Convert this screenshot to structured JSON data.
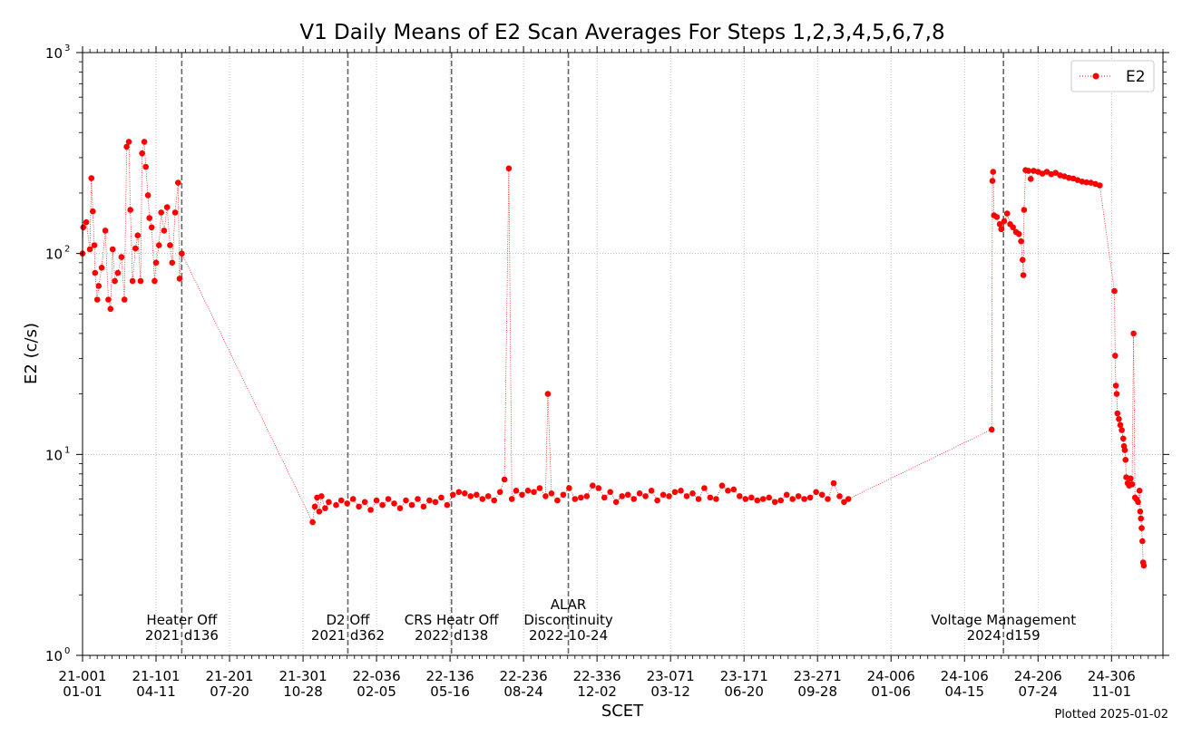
{
  "chart_data": {
    "type": "scatter",
    "title": "V1 Daily Means of E2 Scan Averages For Steps 1,2,3,4,5,6,7,8",
    "xlabel": "SCET",
    "ylabel": "E2 (c/s)",
    "x_units": "days since 2021-001",
    "xlim": [
      0,
      1470
    ],
    "ylim": [
      1,
      1000
    ],
    "yscale": "log",
    "grid": true,
    "legend": {
      "position": "top-right",
      "entries": [
        "E2"
      ]
    },
    "yticks": [
      {
        "value": 1,
        "base": "10",
        "exp": "0"
      },
      {
        "value": 10,
        "base": "10",
        "exp": "1"
      },
      {
        "value": 100,
        "base": "10",
        "exp": "2"
      },
      {
        "value": 1000,
        "base": "10",
        "exp": "3"
      }
    ],
    "xticks": [
      {
        "value": 0,
        "doy": "21-001",
        "date": "01-01"
      },
      {
        "value": 100,
        "doy": "21-101",
        "date": "04-11"
      },
      {
        "value": 200,
        "doy": "21-201",
        "date": "07-20"
      },
      {
        "value": 300,
        "doy": "21-301",
        "date": "10-28"
      },
      {
        "value": 400,
        "doy": "22-036",
        "date": "02-05"
      },
      {
        "value": 500,
        "doy": "22-136",
        "date": "05-16"
      },
      {
        "value": 600,
        "doy": "22-236",
        "date": "08-24"
      },
      {
        "value": 700,
        "doy": "22-336",
        "date": "12-02"
      },
      {
        "value": 800,
        "doy": "23-071",
        "date": "03-12"
      },
      {
        "value": 900,
        "doy": "23-171",
        "date": "06-20"
      },
      {
        "value": 1000,
        "doy": "23-271",
        "date": "09-28"
      },
      {
        "value": 1100,
        "doy": "24-006",
        "date": "01-06"
      },
      {
        "value": 1200,
        "doy": "24-106",
        "date": "04-15"
      },
      {
        "value": 1300,
        "doy": "24-206",
        "date": "07-24"
      },
      {
        "value": 1400,
        "doy": "24-306",
        "date": "11-01"
      }
    ],
    "events": [
      {
        "x": 135,
        "lines": [
          "Heater Off",
          "2021 d136"
        ]
      },
      {
        "x": 361,
        "lines": [
          "D2 Off",
          "2021 d362"
        ]
      },
      {
        "x": 502,
        "lines": [
          "CRS Heatr Off",
          "2022 d138"
        ]
      },
      {
        "x": 661,
        "lines": [
          "ALAR",
          "Discontinuity",
          "2022-10-24"
        ]
      },
      {
        "x": 1253,
        "lines": [
          "Voltage Management",
          "2024 d159"
        ]
      }
    ],
    "series": [
      {
        "name": "E2",
        "color": "#ff0000",
        "points": [
          [
            0,
            100
          ],
          [
            1,
            135
          ],
          [
            5,
            143
          ],
          [
            10,
            105
          ],
          [
            12,
            237
          ],
          [
            14,
            162
          ],
          [
            16,
            110
          ],
          [
            17,
            80
          ],
          [
            20,
            59
          ],
          [
            22,
            69
          ],
          [
            26,
            85
          ],
          [
            31,
            130
          ],
          [
            35,
            59
          ],
          [
            38,
            53
          ],
          [
            41,
            105
          ],
          [
            44,
            73
          ],
          [
            48,
            80
          ],
          [
            53,
            96
          ],
          [
            57,
            59
          ],
          [
            60,
            340
          ],
          [
            63,
            360
          ],
          [
            65,
            165
          ],
          [
            68,
            73
          ],
          [
            72,
            106
          ],
          [
            75,
            123
          ],
          [
            79,
            73
          ],
          [
            81,
            315
          ],
          [
            84,
            360
          ],
          [
            86,
            270
          ],
          [
            89,
            195
          ],
          [
            91,
            150
          ],
          [
            94,
            135
          ],
          [
            98,
            73
          ],
          [
            100,
            90
          ],
          [
            104,
            110
          ],
          [
            107,
            160
          ],
          [
            111,
            130
          ],
          [
            115,
            170
          ],
          [
            119,
            110
          ],
          [
            122,
            90
          ],
          [
            126,
            160
          ],
          [
            130,
            225
          ],
          [
            132,
            75
          ],
          [
            135,
            100
          ],
          [
            313,
            4.6
          ],
          [
            316,
            5.5
          ],
          [
            319,
            6.1
          ],
          [
            322,
            5.2
          ],
          [
            325,
            6.2
          ],
          [
            330,
            5.4
          ],
          [
            335,
            5.8
          ],
          [
            345,
            5.6
          ],
          [
            352,
            5.9
          ],
          [
            360,
            5.7
          ],
          [
            368,
            6.0
          ],
          [
            376,
            5.5
          ],
          [
            384,
            5.8
          ],
          [
            392,
            5.3
          ],
          [
            400,
            5.9
          ],
          [
            408,
            5.6
          ],
          [
            416,
            6.0
          ],
          [
            424,
            5.7
          ],
          [
            432,
            5.4
          ],
          [
            440,
            5.9
          ],
          [
            448,
            5.6
          ],
          [
            456,
            6.0
          ],
          [
            464,
            5.5
          ],
          [
            472,
            5.9
          ],
          [
            480,
            5.8
          ],
          [
            488,
            6.1
          ],
          [
            496,
            5.6
          ],
          [
            504,
            6.3
          ],
          [
            512,
            6.5
          ],
          [
            520,
            6.4
          ],
          [
            528,
            6.2
          ],
          [
            536,
            6.3
          ],
          [
            544,
            6.0
          ],
          [
            552,
            6.2
          ],
          [
            560,
            5.9
          ],
          [
            568,
            6.5
          ],
          [
            574,
            7.5
          ],
          [
            580,
            265
          ],
          [
            584,
            6.0
          ],
          [
            590,
            6.6
          ],
          [
            598,
            6.3
          ],
          [
            606,
            6.6
          ],
          [
            614,
            6.5
          ],
          [
            622,
            6.8
          ],
          [
            630,
            6.2
          ],
          [
            633,
            20
          ],
          [
            638,
            6.4
          ],
          [
            646,
            5.9
          ],
          [
            654,
            6.3
          ],
          [
            662,
            6.8
          ],
          [
            670,
            6.0
          ],
          [
            678,
            6.1
          ],
          [
            686,
            6.2
          ],
          [
            694,
            7.0
          ],
          [
            702,
            6.8
          ],
          [
            710,
            6.1
          ],
          [
            718,
            6.5
          ],
          [
            726,
            5.8
          ],
          [
            734,
            6.2
          ],
          [
            742,
            6.3
          ],
          [
            750,
            6.0
          ],
          [
            758,
            6.4
          ],
          [
            766,
            6.2
          ],
          [
            774,
            6.6
          ],
          [
            782,
            5.9
          ],
          [
            790,
            6.3
          ],
          [
            798,
            6.2
          ],
          [
            806,
            6.5
          ],
          [
            814,
            6.6
          ],
          [
            822,
            6.2
          ],
          [
            830,
            6.4
          ],
          [
            838,
            6.0
          ],
          [
            846,
            6.8
          ],
          [
            854,
            6.1
          ],
          [
            862,
            6.0
          ],
          [
            870,
            7.0
          ],
          [
            878,
            6.6
          ],
          [
            886,
            6.7
          ],
          [
            894,
            6.2
          ],
          [
            902,
            6.0
          ],
          [
            910,
            6.1
          ],
          [
            918,
            5.9
          ],
          [
            926,
            6.0
          ],
          [
            934,
            6.1
          ],
          [
            942,
            5.8
          ],
          [
            950,
            5.9
          ],
          [
            958,
            6.3
          ],
          [
            966,
            6.0
          ],
          [
            974,
            6.2
          ],
          [
            982,
            6.0
          ],
          [
            990,
            6.1
          ],
          [
            998,
            6.5
          ],
          [
            1006,
            6.3
          ],
          [
            1014,
            6.0
          ],
          [
            1022,
            7.2
          ],
          [
            1030,
            6.2
          ],
          [
            1036,
            5.8
          ],
          [
            1042,
            6.0
          ],
          [
            1237,
            13.3
          ],
          [
            1238,
            230
          ],
          [
            1239,
            255
          ],
          [
            1240,
            155
          ],
          [
            1244,
            152
          ],
          [
            1248,
            140
          ],
          [
            1250,
            132
          ],
          [
            1254,
            145
          ],
          [
            1258,
            158
          ],
          [
            1262,
            140
          ],
          [
            1266,
            135
          ],
          [
            1270,
            128
          ],
          [
            1274,
            125
          ],
          [
            1277,
            115
          ],
          [
            1279,
            93
          ],
          [
            1280,
            78
          ],
          [
            1281,
            165
          ],
          [
            1283,
            260
          ],
          [
            1287,
            258
          ],
          [
            1290,
            235
          ],
          [
            1294,
            258
          ],
          [
            1300,
            255
          ],
          [
            1306,
            250
          ],
          [
            1312,
            255
          ],
          [
            1318,
            248
          ],
          [
            1324,
            252
          ],
          [
            1330,
            245
          ],
          [
            1336,
            242
          ],
          [
            1342,
            238
          ],
          [
            1348,
            236
          ],
          [
            1354,
            232
          ],
          [
            1360,
            228
          ],
          [
            1366,
            226
          ],
          [
            1372,
            225
          ],
          [
            1378,
            222
          ],
          [
            1384,
            218
          ],
          [
            1404,
            65
          ],
          [
            1405,
            31
          ],
          [
            1406,
            22
          ],
          [
            1407,
            20
          ],
          [
            1408,
            16
          ],
          [
            1410,
            15
          ],
          [
            1412,
            14
          ],
          [
            1414,
            13.2
          ],
          [
            1416,
            12
          ],
          [
            1417,
            11
          ],
          [
            1418,
            10.5
          ],
          [
            1419,
            9.4
          ],
          [
            1420,
            7.7
          ],
          [
            1422,
            7.2
          ],
          [
            1424,
            7.0
          ],
          [
            1426,
            7.6
          ],
          [
            1428,
            7.1
          ],
          [
            1430,
            40
          ],
          [
            1432,
            6.1
          ],
          [
            1434,
            6.0
          ],
          [
            1436,
            5.8
          ],
          [
            1438,
            6.6
          ],
          [
            1439,
            5.2
          ],
          [
            1440,
            4.8
          ],
          [
            1441,
            4.3
          ],
          [
            1442,
            3.7
          ],
          [
            1443,
            2.9
          ],
          [
            1444,
            2.8
          ]
        ]
      }
    ],
    "footnote": "Plotted 2025-01-02"
  }
}
